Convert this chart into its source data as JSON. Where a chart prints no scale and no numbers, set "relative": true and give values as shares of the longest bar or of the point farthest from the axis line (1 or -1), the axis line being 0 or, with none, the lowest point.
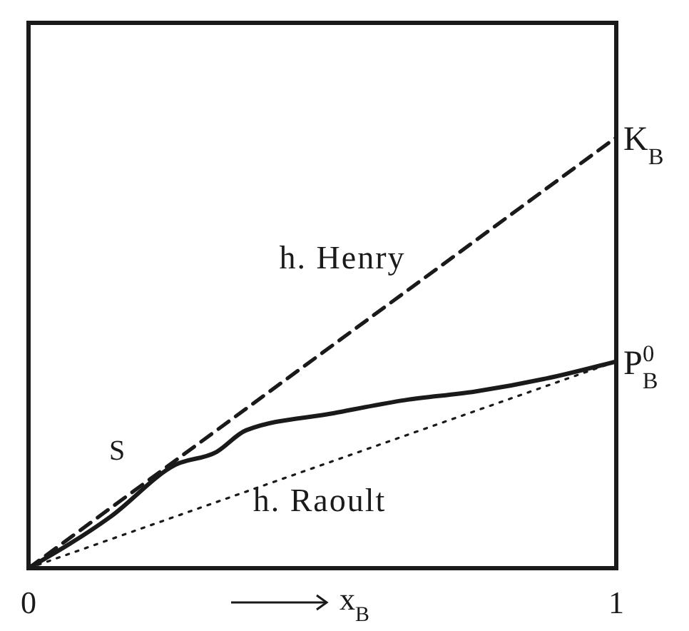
{
  "chart_data": {
    "type": "line",
    "relative": true,
    "xlabel": "x$_{B}$",
    "xlim": [
      0,
      1
    ],
    "xticks": [
      0,
      1
    ],
    "tick_labels": "x",
    "legend": false,
    "marker": "none",
    "series": [
      {
        "name": "h. Henry",
        "color": "#1a1a1a",
        "line_style": "dashed",
        "x": [
          0,
          1
        ],
        "values": [
          0,
          1
        ]
      },
      {
        "name": "S",
        "color": "#1a1a1a",
        "line_style": "solid",
        "x": [
          0,
          0.14,
          0.25,
          0.32,
          0.37,
          0.52,
          0.64,
          0.76,
          0.88,
          1
        ],
        "values": [
          0,
          0.12,
          0.24,
          0.27,
          0.32,
          0.36,
          0.39,
          0.41,
          0.44,
          0.48
        ]
      },
      {
        "name": "h. Raoult",
        "color": "#1a1a1a",
        "line_style": "dotted",
        "x": [
          0,
          1
        ],
        "values": [
          0,
          0.48
        ]
      }
    ],
    "annotations": [
      {
        "text": "K$_{B}$",
        "x": 1,
        "y": 1
      },
      {
        "text": "P$_{B}$$^{0}$",
        "x": 1,
        "y": 0.48
      }
    ]
  }
}
